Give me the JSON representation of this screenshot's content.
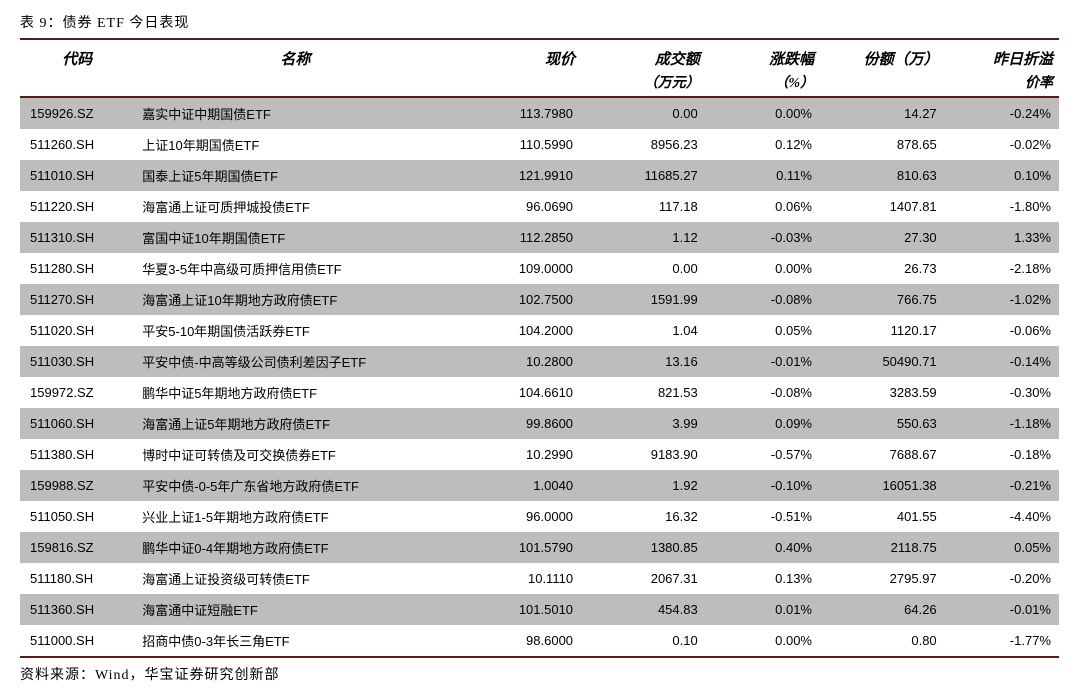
{
  "caption": "表 9：债券 ETF 今日表现",
  "source": "资料来源：Wind，华宝证券研究创新部",
  "colors": {
    "rule": "#5a1a1a",
    "row_alt": "#bebdbb",
    "row_norm": "#ffffff",
    "text": "#000000",
    "background": "#ffffff"
  },
  "table": {
    "type": "table",
    "columns": [
      {
        "key": "code",
        "header": "代码",
        "sub": "",
        "align": "left",
        "width": "11%"
      },
      {
        "key": "name",
        "header": "名称",
        "sub": "",
        "align": "left",
        "width": "31%"
      },
      {
        "key": "price",
        "header": "现价",
        "sub": "",
        "align": "right",
        "width": "12%"
      },
      {
        "key": "volume",
        "header": "成交额",
        "sub": "（万元）",
        "align": "right",
        "width": "12%"
      },
      {
        "key": "change",
        "header": "涨跌幅",
        "sub": "（%）",
        "align": "right",
        "width": "11%"
      },
      {
        "key": "share",
        "header": "份额（万）",
        "sub": "",
        "align": "right",
        "width": "12%"
      },
      {
        "key": "premium",
        "header": "昨日折溢",
        "sub": "价率",
        "align": "right",
        "width": "11%"
      }
    ],
    "rows": [
      {
        "code": "159926.SZ",
        "name": "嘉实中证中期国债ETF",
        "price": "113.7980",
        "volume": "0.00",
        "change": "0.00%",
        "share": "14.27",
        "premium": "-0.24%"
      },
      {
        "code": "511260.SH",
        "name": "上证10年期国债ETF",
        "price": "110.5990",
        "volume": "8956.23",
        "change": "0.12%",
        "share": "878.65",
        "premium": "-0.02%"
      },
      {
        "code": "511010.SH",
        "name": "国泰上证5年期国债ETF",
        "price": "121.9910",
        "volume": "11685.27",
        "change": "0.11%",
        "share": "810.63",
        "premium": "0.10%"
      },
      {
        "code": "511220.SH",
        "name": "海富通上证可质押城投债ETF",
        "price": "96.0690",
        "volume": "117.18",
        "change": "0.06%",
        "share": "1407.81",
        "premium": "-1.80%"
      },
      {
        "code": "511310.SH",
        "name": "富国中证10年期国债ETF",
        "price": "112.2850",
        "volume": "1.12",
        "change": "-0.03%",
        "share": "27.30",
        "premium": "1.33%"
      },
      {
        "code": "511280.SH",
        "name": "华夏3-5年中高级可质押信用债ETF",
        "price": "109.0000",
        "volume": "0.00",
        "change": "0.00%",
        "share": "26.73",
        "premium": "-2.18%"
      },
      {
        "code": "511270.SH",
        "name": "海富通上证10年期地方政府债ETF",
        "price": "102.7500",
        "volume": "1591.99",
        "change": "-0.08%",
        "share": "766.75",
        "premium": "-1.02%"
      },
      {
        "code": "511020.SH",
        "name": "平安5-10年期国债活跃券ETF",
        "price": "104.2000",
        "volume": "1.04",
        "change": "0.05%",
        "share": "1120.17",
        "premium": "-0.06%"
      },
      {
        "code": "511030.SH",
        "name": "平安中债-中高等级公司债利差因子ETF",
        "price": "10.2800",
        "volume": "13.16",
        "change": "-0.01%",
        "share": "50490.71",
        "premium": "-0.14%"
      },
      {
        "code": "159972.SZ",
        "name": "鹏华中证5年期地方政府债ETF",
        "price": "104.6610",
        "volume": "821.53",
        "change": "-0.08%",
        "share": "3283.59",
        "premium": "-0.30%"
      },
      {
        "code": "511060.SH",
        "name": "海富通上证5年期地方政府债ETF",
        "price": "99.8600",
        "volume": "3.99",
        "change": "0.09%",
        "share": "550.63",
        "premium": "-1.18%"
      },
      {
        "code": "511380.SH",
        "name": "博时中证可转债及可交换债券ETF",
        "price": "10.2990",
        "volume": "9183.90",
        "change": "-0.57%",
        "share": "7688.67",
        "premium": "-0.18%"
      },
      {
        "code": "159988.SZ",
        "name": "平安中债-0-5年广东省地方政府债ETF",
        "price": "1.0040",
        "volume": "1.92",
        "change": "-0.10%",
        "share": "16051.38",
        "premium": "-0.21%"
      },
      {
        "code": "511050.SH",
        "name": "兴业上证1-5年期地方政府债ETF",
        "price": "96.0000",
        "volume": "16.32",
        "change": "-0.51%",
        "share": "401.55",
        "premium": "-4.40%"
      },
      {
        "code": "159816.SZ",
        "name": "鹏华中证0-4年期地方政府债ETF",
        "price": "101.5790",
        "volume": "1380.85",
        "change": "0.40%",
        "share": "2118.75",
        "premium": "0.05%"
      },
      {
        "code": "511180.SH",
        "name": "海富通上证投资级可转债ETF",
        "price": "10.1110",
        "volume": "2067.31",
        "change": "0.13%",
        "share": "2795.97",
        "premium": "-0.20%"
      },
      {
        "code": "511360.SH",
        "name": "海富通中证短融ETF",
        "price": "101.5010",
        "volume": "454.83",
        "change": "0.01%",
        "share": "64.26",
        "premium": "-0.01%"
      },
      {
        "code": "511000.SH",
        "name": "招商中债0-3年长三角ETF",
        "price": "98.6000",
        "volume": "0.10",
        "change": "0.00%",
        "share": "0.80",
        "premium": "-1.77%"
      }
    ]
  }
}
